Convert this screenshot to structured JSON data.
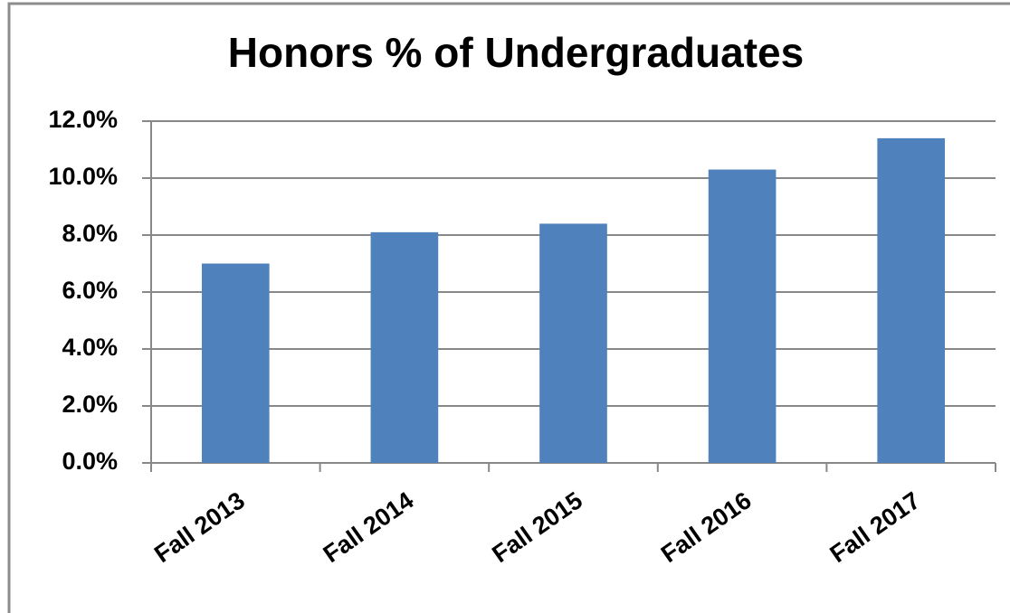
{
  "chart_data": {
    "type": "bar",
    "title": "Honors % of Undergraduates",
    "categories": [
      "Fall 2013",
      "Fall 2014",
      "Fall 2015",
      "Fall 2016",
      "Fall 2017"
    ],
    "values": [
      7.0,
      8.1,
      8.4,
      10.3,
      11.4
    ],
    "color": "#4f81bd",
    "ylim": [
      0,
      12
    ],
    "yticks": [
      {
        "value": 0,
        "label": "0.0%"
      },
      {
        "value": 2,
        "label": "2.0%"
      },
      {
        "value": 4,
        "label": "4.0%"
      },
      {
        "value": 6,
        "label": "6.0%"
      },
      {
        "value": 8,
        "label": "8.0%"
      },
      {
        "value": 10,
        "label": "10.0%"
      },
      {
        "value": 12,
        "label": "12.0%"
      }
    ],
    "grid": true
  }
}
